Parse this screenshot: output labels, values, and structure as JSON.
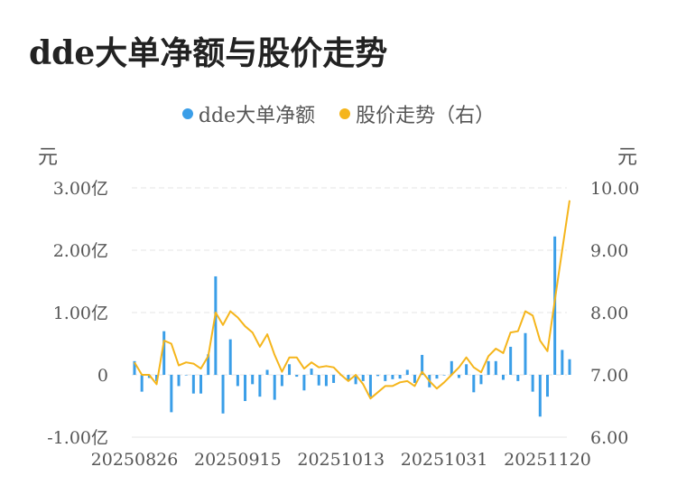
{
  "title": "dde大单净额与股价走势",
  "colors": {
    "bar": "#3a9ee8",
    "line": "#f5b51b",
    "grid": "#e6e6e6"
  },
  "chart_data": {
    "type": "bar+line",
    "legend": [
      {
        "name": "dde大单净额",
        "color": "#3a9ee8"
      },
      {
        "name": "股价走势（右）",
        "color": "#f5b51b"
      }
    ],
    "y_left": {
      "unit": "元",
      "ticks": [
        "3.00亿",
        "2.00亿",
        "1.00亿",
        "0",
        "-1.00亿"
      ],
      "range": [
        -1.0,
        3.0
      ]
    },
    "y_right": {
      "unit": "元",
      "ticks": [
        "10.00",
        "9.00",
        "8.00",
        "7.00",
        "6.00"
      ],
      "range": [
        6.0,
        10.0
      ]
    },
    "x_ticks": [
      "20250826",
      "20250915",
      "20251013",
      "20251031",
      "20251120"
    ],
    "x_tick_index": [
      0,
      14,
      28,
      42,
      56
    ],
    "bars": [
      0.22,
      -0.27,
      -0.05,
      -0.1,
      0.7,
      -0.6,
      -0.18,
      0.0,
      -0.3,
      -0.3,
      0.33,
      1.58,
      -0.62,
      0.57,
      -0.18,
      -0.42,
      -0.15,
      -0.35,
      0.08,
      -0.4,
      -0.18,
      0.17,
      -0.03,
      -0.25,
      0.1,
      -0.17,
      -0.18,
      -0.13,
      0.0,
      -0.1,
      -0.15,
      -0.1,
      -0.35,
      -0.02,
      -0.1,
      -0.07,
      -0.06,
      0.08,
      -0.13,
      0.32,
      -0.2,
      -0.06,
      0.0,
      0.22,
      -0.05,
      0.17,
      -0.28,
      -0.15,
      0.22,
      0.22,
      -0.08,
      0.45,
      -0.1,
      0.67,
      -0.27,
      -0.67,
      -0.35,
      2.22,
      0.4,
      0.25
    ],
    "price": [
      7.2,
      7.0,
      7.0,
      6.85,
      7.55,
      7.5,
      7.15,
      7.2,
      7.18,
      7.1,
      7.3,
      8.0,
      7.8,
      8.02,
      7.92,
      7.78,
      7.68,
      7.45,
      7.65,
      7.32,
      7.05,
      7.28,
      7.28,
      7.1,
      7.2,
      7.12,
      7.14,
      7.12,
      7.0,
      6.9,
      7.0,
      6.85,
      6.62,
      6.72,
      6.82,
      6.82,
      6.88,
      6.9,
      6.82,
      7.05,
      6.9,
      6.78,
      6.88,
      7.0,
      7.12,
      7.28,
      7.12,
      7.04,
      7.3,
      7.42,
      7.35,
      7.68,
      7.7,
      8.02,
      7.95,
      7.55,
      7.38,
      8.2,
      9.0,
      9.8
    ]
  }
}
